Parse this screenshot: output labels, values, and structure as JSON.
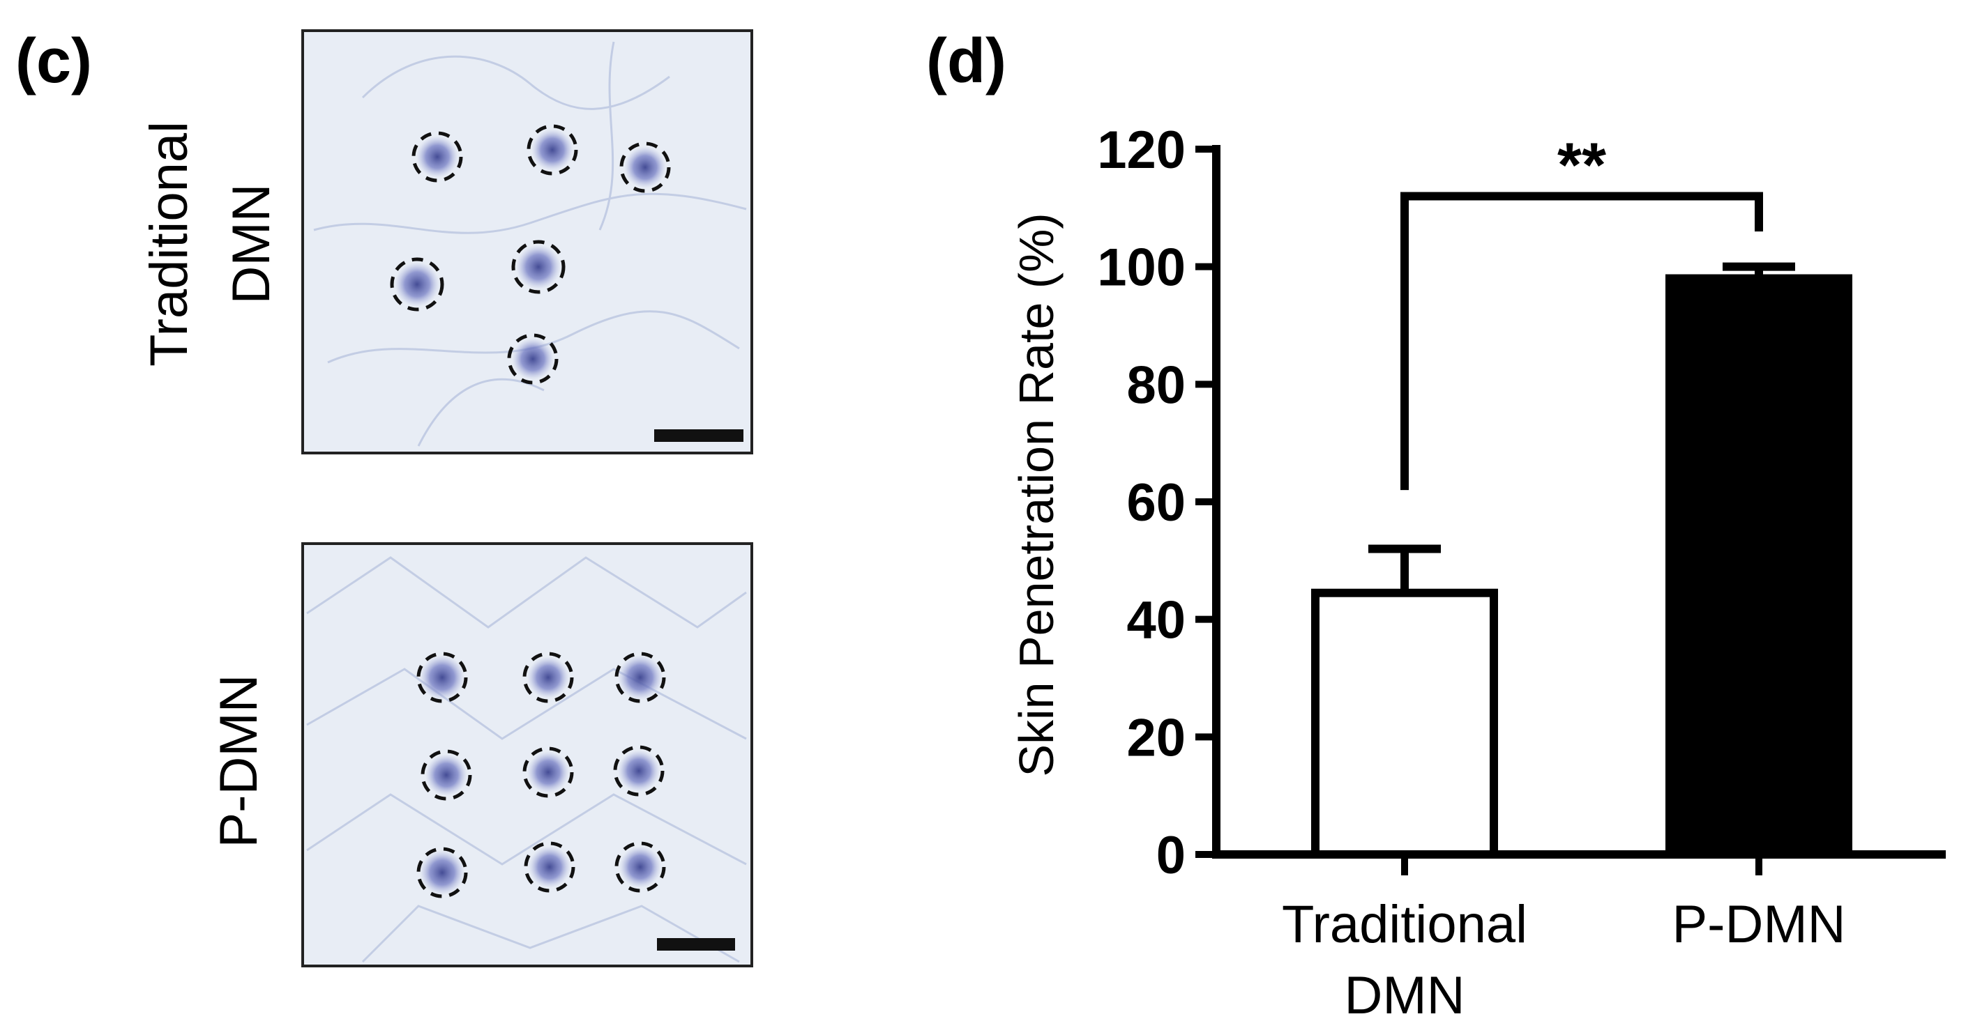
{
  "panels": {
    "left_label": "(c)",
    "right_label": "(d)"
  },
  "micrographs": [
    {
      "row_label_lines": [
        "Traditional",
        "DMN"
      ],
      "dots": 6
    },
    {
      "row_label_lines": [
        "P-DMN"
      ],
      "dots": 9
    }
  ],
  "colors": {
    "tissue_background": "#e6ecf4",
    "stain": "#5b64b4",
    "bar_traditional": "#ffffff",
    "bar_pdmn": "#000000",
    "axis": "#000000"
  },
  "chart_data": {
    "type": "bar",
    "categories": [
      {
        "lines": [
          "Traditional",
          "DMN"
        ]
      },
      {
        "lines": [
          "P-DMN"
        ]
      }
    ],
    "values": [
      44.5,
      98
    ],
    "errors": [
      7.5,
      2
    ],
    "bar_fills": [
      "#ffffff",
      "#000000"
    ],
    "ylabel": "Skin  Penetration  Rate  (%)",
    "ylim": [
      0,
      120
    ],
    "yticks": [
      0,
      20,
      40,
      60,
      80,
      100,
      120
    ],
    "grid": false,
    "legend": "none",
    "significance": {
      "between": [
        0,
        1
      ],
      "label": "**"
    }
  }
}
